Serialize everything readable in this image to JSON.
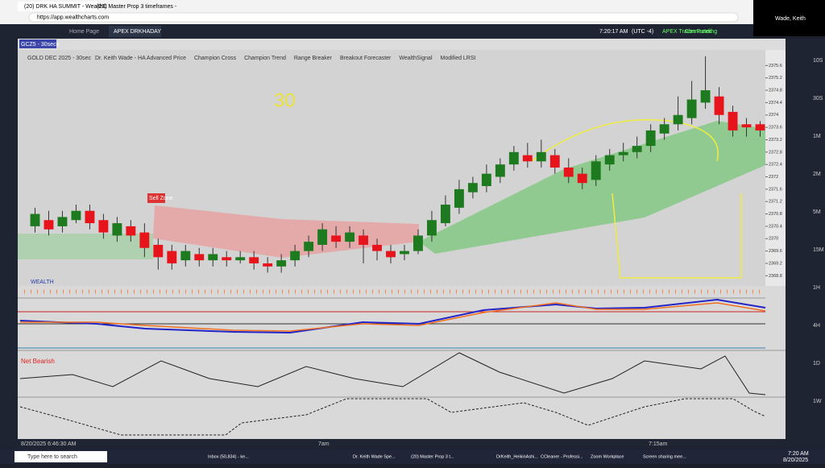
{
  "browser": {
    "tabs": [
      "(20) DRK HA SUMMIT - WealthC",
      "(20) Master Prop 3 timeframes -"
    ],
    "url": "https://app.wealthcharts.com"
  },
  "zoom": {
    "name": "Wade, Keith"
  },
  "app": {
    "tabs": [
      "Home Page",
      "APEX DRKHADAY"
    ],
    "clock": "7:20:17 AM",
    "timezone": "(UTC -4)",
    "broker": "APEX Trader Funding",
    "status": "Connected",
    "symbol": "GCZ5 - 30secs"
  },
  "legend": {
    "instrument": "GOLD DEC 2025 - 30sec",
    "indicators": [
      "Dr. Keith Wade - HA Advanced Price",
      "Champion Cross",
      "Champion Trend",
      "Range Breaker",
      "Breakout Forecaster",
      "WealthSignal",
      "Modified LRSI"
    ]
  },
  "annotations": {
    "sell_zone": "Sell Zone",
    "handwritten": "30",
    "wealth_panel": "WEALTH",
    "net_state": "Net Bearish"
  },
  "time_axis": {
    "start": "8/20/2025 6:46:30 AM",
    "labels": [
      "7am",
      "7:15am"
    ]
  },
  "timeframes": [
    "10S",
    "30S",
    "1M",
    "2M",
    "5M",
    "15M",
    "1H",
    "4H",
    "1D",
    "1W"
  ],
  "chart_data": {
    "type": "candlestick",
    "ylim": [
      2368.6,
      2376.0
    ],
    "yticks": [
      2368.8,
      2369.2,
      2369.6,
      2370.0,
      2370.4,
      2370.8,
      2371.2,
      2371.6,
      2372.0,
      2372.4,
      2372.8,
      2373.2,
      2373.6,
      2374.0,
      2374.4,
      2374.8,
      2375.2,
      2375.6
    ],
    "up_color": "#1e7a1e",
    "down_color": "#e8141c",
    "open": [
      2370.4,
      2370.6,
      2370.4,
      2370.6,
      2370.9,
      2370.6,
      2370.1,
      2370.4,
      2370.2,
      2369.8,
      2369.6,
      2369.3,
      2369.5,
      2369.3,
      2369.4,
      2369.3,
      2369.4,
      2369.2,
      2369.1,
      2369.3,
      2369.6,
      2369.8,
      2370.1,
      2369.9,
      2370.1,
      2369.8,
      2369.6,
      2369.5,
      2369.6,
      2370.1,
      2370.5,
      2371.0,
      2371.5,
      2371.7,
      2372.0,
      2372.4,
      2372.7,
      2372.5,
      2372.7,
      2372.3,
      2372.1,
      2371.9,
      2372.4,
      2372.7,
      2372.8,
      2373.0,
      2373.4,
      2373.7,
      2373.9,
      2374.4,
      2374.6,
      2374.1,
      2373.7,
      2373.7
    ],
    "close": [
      2370.8,
      2370.3,
      2370.7,
      2370.9,
      2370.5,
      2370.2,
      2370.5,
      2370.1,
      2369.7,
      2369.4,
      2369.2,
      2369.6,
      2369.3,
      2369.5,
      2369.3,
      2369.4,
      2369.2,
      2369.1,
      2369.3,
      2369.6,
      2369.9,
      2370.3,
      2369.9,
      2370.2,
      2369.8,
      2369.6,
      2369.4,
      2369.6,
      2370.1,
      2370.6,
      2371.1,
      2371.6,
      2371.8,
      2372.1,
      2372.4,
      2372.8,
      2372.5,
      2372.8,
      2372.3,
      2372.0,
      2371.8,
      2372.5,
      2372.7,
      2372.8,
      2373.0,
      2373.5,
      2373.7,
      2374.0,
      2374.5,
      2374.8,
      2374.0,
      2373.5,
      2373.6,
      2373.5
    ],
    "high": [
      2371.0,
      2370.9,
      2370.9,
      2371.1,
      2371.1,
      2370.8,
      2370.7,
      2370.6,
      2370.5,
      2370.0,
      2369.8,
      2369.8,
      2369.7,
      2369.7,
      2369.6,
      2369.6,
      2369.6,
      2369.4,
      2369.5,
      2369.8,
      2370.1,
      2370.5,
      2370.4,
      2370.4,
      2370.3,
      2370.0,
      2369.8,
      2369.8,
      2370.3,
      2370.9,
      2371.4,
      2371.9,
      2372.0,
      2372.4,
      2372.6,
      2373.0,
      2373.1,
      2373.2,
      2372.9,
      2372.6,
      2372.3,
      2372.7,
      2372.9,
      2373.1,
      2373.3,
      2373.7,
      2373.9,
      2374.6,
      2375.1,
      2375.9,
      2374.9,
      2374.3,
      2373.9,
      2373.8
    ],
    "low": [
      2370.2,
      2370.1,
      2370.2,
      2370.5,
      2370.3,
      2370.0,
      2369.9,
      2369.9,
      2369.4,
      2369.0,
      2369.0,
      2369.1,
      2369.1,
      2369.1,
      2369.1,
      2369.2,
      2369.0,
      2368.9,
      2368.9,
      2369.1,
      2369.4,
      2369.6,
      2369.7,
      2369.7,
      2369.2,
      2369.3,
      2369.2,
      2369.3,
      2369.5,
      2369.9,
      2370.4,
      2370.8,
      2371.3,
      2371.5,
      2371.8,
      2372.2,
      2372.3,
      2372.3,
      2372.1,
      2371.8,
      2371.6,
      2371.7,
      2372.2,
      2372.5,
      2372.6,
      2372.8,
      2373.2,
      2373.5,
      2373.7,
      2374.2,
      2373.7,
      2373.3,
      2373.3,
      2373.3
    ]
  },
  "taskbar": {
    "search": "Type here to search",
    "apps": [
      "Inbox (50,834) - ke...",
      "Dr. Keith Wade Spe...",
      "(20) Master Prop 3 t...",
      "DrKeith_HeikinAshi...",
      "CCleaner - Professi...",
      "Zoom Workplace",
      "Screen sharing mee..."
    ],
    "time": "7:20 AM",
    "date": "8/20/2025"
  }
}
